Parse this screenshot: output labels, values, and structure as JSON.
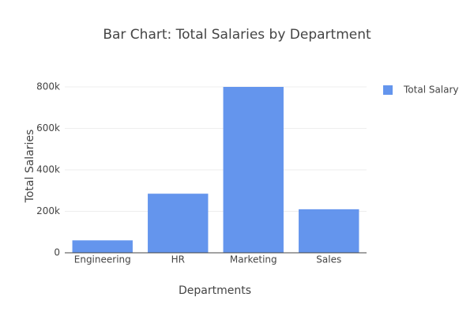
{
  "chart_data": {
    "type": "bar",
    "title": "Bar Chart: Total Salaries by Department",
    "x_label": "Departments",
    "y_label": "Total Salaries",
    "categories": [
      "Engineering",
      "HR",
      "Marketing",
      "Sales"
    ],
    "series": [
      {
        "name": "Total Salary",
        "color": "#6495ed",
        "values": [
          60000,
          285000,
          800000,
          210000
        ]
      }
    ],
    "ylim": [
      0,
      840000
    ],
    "yticks": [
      0,
      {
        "value": 200000,
        "label": "200k"
      },
      {
        "value": 400000,
        "label": "400k"
      },
      {
        "value": 600000,
        "label": "600k"
      },
      {
        "value": 800000,
        "label": "800k"
      }
    ],
    "grid": true,
    "legend": "top-right"
  }
}
